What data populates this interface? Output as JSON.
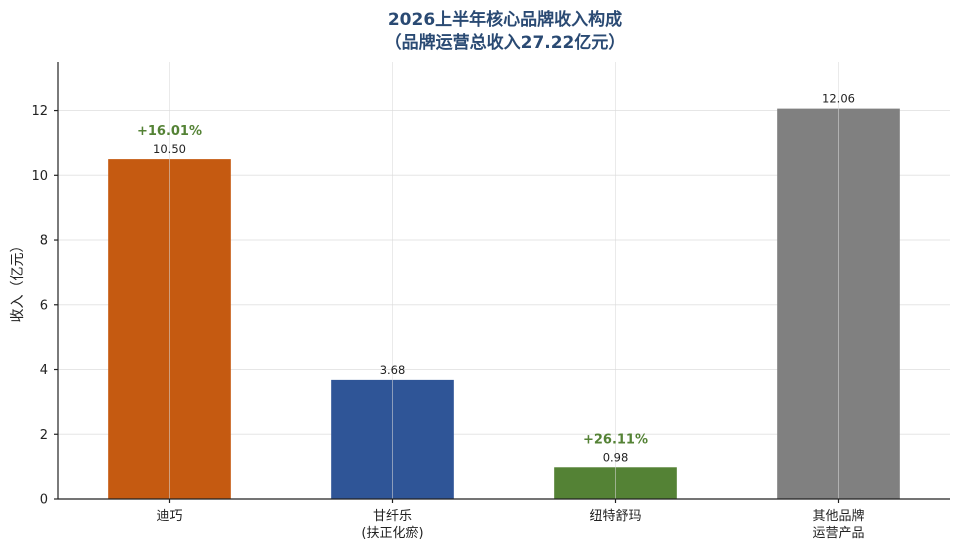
{
  "chart_data": {
    "type": "bar",
    "title": [
      "2026上半年核心品牌收入构成",
      "（品牌运营总收入27.22亿元）"
    ],
    "ylabel": "收入（亿元）",
    "xlabel": "",
    "ylim": [
      0,
      13.5
    ],
    "yticks": [
      0,
      2,
      4,
      6,
      8,
      10,
      12
    ],
    "grid": true,
    "categories": [
      [
        "迪巧"
      ],
      [
        "甘纤乐",
        "(扶正化瘀)"
      ],
      [
        "纽特舒玛"
      ],
      [
        "其他品牌",
        "运营产品"
      ]
    ],
    "values": [
      10.5,
      3.68,
      0.98,
      12.06
    ],
    "value_labels": [
      "10.50",
      "3.68",
      "0.98",
      "12.06"
    ],
    "growth_labels": [
      "+16.01%",
      "",
      "+26.11%",
      ""
    ],
    "colors": [
      "#c55a11",
      "#2f5597",
      "#548235",
      "#808080"
    ],
    "growth_color": "#548235"
  }
}
